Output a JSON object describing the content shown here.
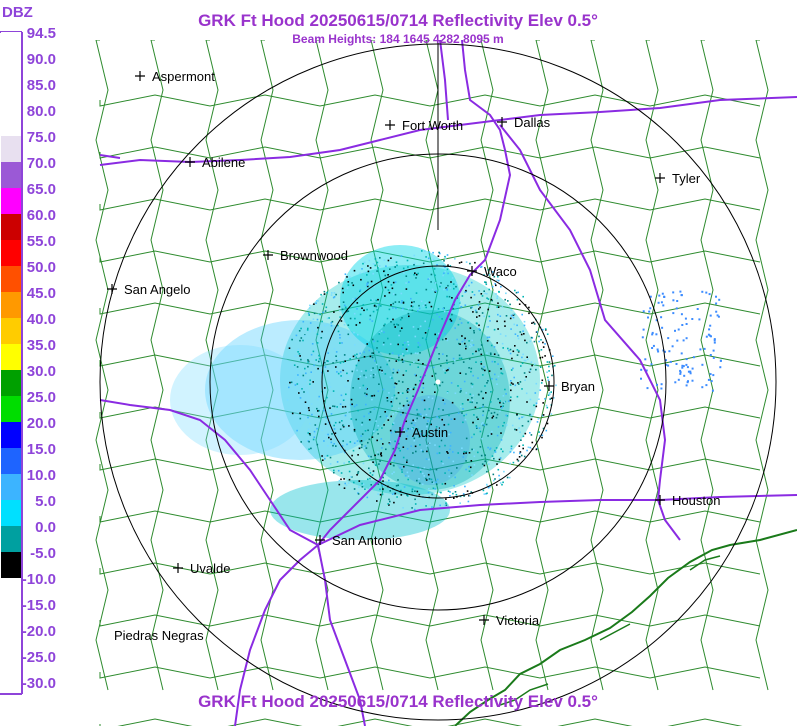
{
  "header": {
    "title": "GRK Ft Hood 20250615/0714 Reflectivity Elev 0.5°",
    "subtitle": "Beam Heights: 184 1645 4282 8095 m",
    "footer_title": "GRK Ft Hood 20250615/0714 Reflectivity Elev 0.5°"
  },
  "colors": {
    "title": "#9933cc",
    "border": "#8e44d9",
    "county_lines": "#2e8b2e",
    "highways": "#8a2be2",
    "range_rings": "#000000"
  },
  "legend": {
    "unit": "DBZ",
    "labels": [
      "94.5",
      "90.0",
      "85.0",
      "80.0",
      "75.0",
      "70.0",
      "65.0",
      "60.0",
      "55.0",
      "50.0",
      "45.0",
      "40.0",
      "35.0",
      "30.0",
      "25.0",
      "20.0",
      "15.0",
      "10.0",
      "5.0",
      "0.0",
      "-5.0",
      "-10.0",
      "-15.0",
      "-20.0",
      "-25.0",
      "-30.0"
    ],
    "colors": [
      "#ffffff",
      "#ffffff",
      "#ffffff",
      "#ffffff",
      "#e8e0f0",
      "#9b59d6",
      "#ff00ff",
      "#cc0000",
      "#ff0000",
      "#ff5000",
      "#ff9900",
      "#ffcc00",
      "#ffff00",
      "#00a000",
      "#00dd00",
      "#0000ff",
      "#1e64ff",
      "#3cb4ff",
      "#00e0ff",
      "#00a0a0",
      "#000000",
      "#ffffff",
      "#ffffff",
      "#ffffff",
      "#ffffff",
      "#ffffff"
    ]
  },
  "cities": [
    {
      "name": "Aspermont"
    },
    {
      "name": "Fort Worth"
    },
    {
      "name": "Dallas"
    },
    {
      "name": "Abilene"
    },
    {
      "name": "Tyler"
    },
    {
      "name": "Brownwood"
    },
    {
      "name": "Waco"
    },
    {
      "name": "San Angelo"
    },
    {
      "name": "Bryan"
    },
    {
      "name": "Austin"
    },
    {
      "name": "Houston"
    },
    {
      "name": "San Antonio"
    },
    {
      "name": "Uvalde"
    },
    {
      "name": "Victoria"
    },
    {
      "name": "Piedras Negras"
    }
  ]
}
